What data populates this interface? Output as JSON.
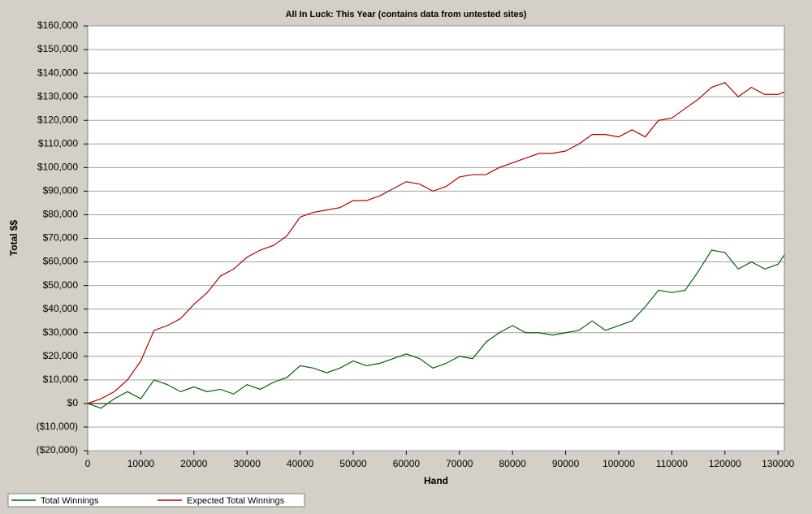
{
  "chart_data": {
    "type": "line",
    "title": "All In Luck: This Year (contains data from untested sites)",
    "x_label": "Hand",
    "y_label": "Total $$",
    "x": [
      0,
      2500,
      5000,
      7500,
      10000,
      12500,
      15000,
      17500,
      20000,
      22500,
      25000,
      27500,
      30000,
      32500,
      35000,
      37500,
      40000,
      42500,
      45000,
      47500,
      50000,
      52500,
      55000,
      57500,
      60000,
      62500,
      65000,
      67500,
      70000,
      72500,
      75000,
      77500,
      80000,
      82500,
      85000,
      87500,
      90000,
      92500,
      95000,
      97500,
      100000,
      102500,
      105000,
      107500,
      110000,
      112500,
      115000,
      117500,
      120000,
      122500,
      125000,
      127500,
      130000,
      131200
    ],
    "series": [
      {
        "name": "Total Winnings",
        "color": "#006400",
        "values": [
          0,
          -2000,
          2000,
          5000,
          2000,
          10000,
          8000,
          5000,
          7000,
          5000,
          6000,
          4000,
          8000,
          6000,
          9000,
          11000,
          16000,
          15000,
          13000,
          15000,
          18000,
          16000,
          17000,
          19000,
          21000,
          19000,
          15000,
          17000,
          20000,
          19000,
          26000,
          30000,
          33000,
          30000,
          30000,
          29000,
          30000,
          31000,
          35000,
          31000,
          33000,
          35000,
          41000,
          48000,
          47000,
          48000,
          56000,
          65000,
          64000,
          57000,
          60000,
          57000,
          59000,
          63000
        ]
      },
      {
        "name": "Expected Total Winnings",
        "color": "#b00000",
        "values": [
          0,
          2000,
          5000,
          10000,
          18000,
          31000,
          33000,
          36000,
          42000,
          47000,
          54000,
          57000,
          62000,
          65000,
          67000,
          71000,
          79000,
          81000,
          82000,
          83000,
          86000,
          86000,
          88000,
          91000,
          94000,
          93000,
          90000,
          92000,
          96000,
          97000,
          97000,
          100000,
          102000,
          104000,
          106000,
          106000,
          107000,
          110000,
          114000,
          114000,
          113000,
          116000,
          113000,
          120000,
          121000,
          125000,
          129000,
          134000,
          136000,
          130000,
          134000,
          131000,
          131000,
          132000
        ]
      }
    ],
    "xlim": [
      0,
      131200
    ],
    "ylim": [
      -20000,
      160000
    ],
    "xticks": [
      0,
      10000,
      20000,
      30000,
      40000,
      50000,
      60000,
      70000,
      80000,
      90000,
      100000,
      110000,
      120000,
      130000
    ],
    "yticks": [
      {
        "value": -20000,
        "label": "($20,000)"
      },
      {
        "value": -10000,
        "label": "($10,000)"
      },
      {
        "value": 0,
        "label": "$0"
      },
      {
        "value": 10000,
        "label": "$10,000"
      },
      {
        "value": 20000,
        "label": "$20,000"
      },
      {
        "value": 30000,
        "label": "$30,000"
      },
      {
        "value": 40000,
        "label": "$40,000"
      },
      {
        "value": 50000,
        "label": "$50,000"
      },
      {
        "value": 60000,
        "label": "$60,000"
      },
      {
        "value": 70000,
        "label": "$70,000"
      },
      {
        "value": 80000,
        "label": "$80,000"
      },
      {
        "value": 90000,
        "label": "$90,000"
      },
      {
        "value": 100000,
        "label": "$100,000"
      },
      {
        "value": 110000,
        "label": "$110,000"
      },
      {
        "value": 120000,
        "label": "$120,000"
      },
      {
        "value": 130000,
        "label": "$130,000"
      },
      {
        "value": 140000,
        "label": "$140,000"
      },
      {
        "value": 150000,
        "label": "$150,000"
      },
      {
        "value": 160000,
        "label": "$160,000"
      }
    ],
    "grid": true,
    "legend": "bottom"
  }
}
